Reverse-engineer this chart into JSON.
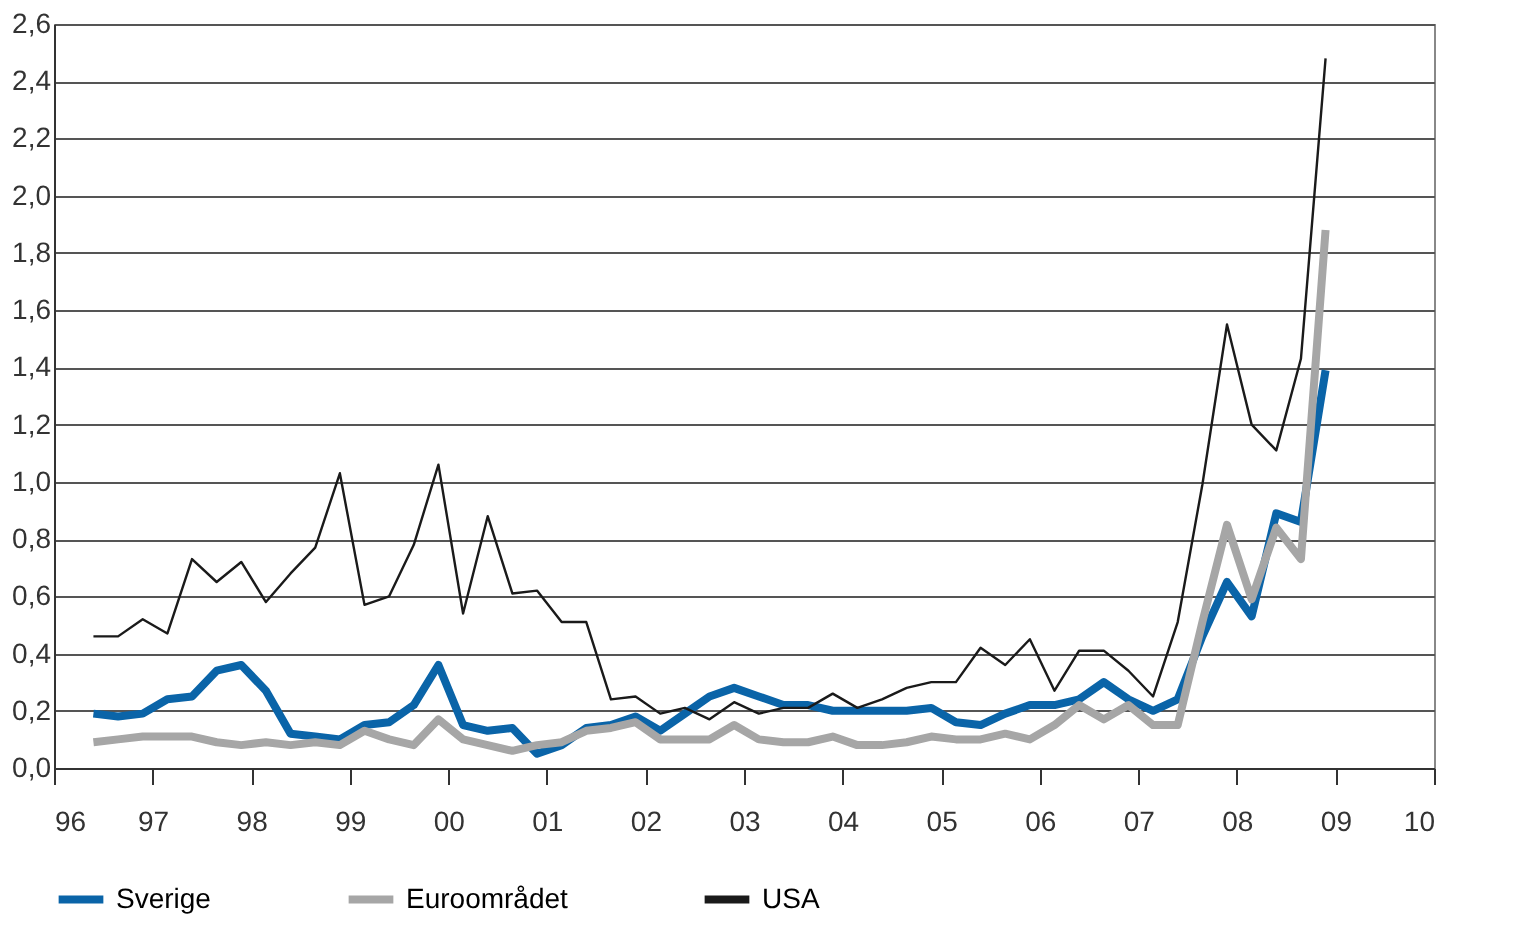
{
  "chart_data": {
    "type": "line",
    "x": [
      1996.4,
      1996.65,
      1996.9,
      1997.15,
      1997.4,
      1997.65,
      1997.9,
      1998.15,
      1998.4,
      1998.65,
      1998.9,
      1999.15,
      1999.4,
      1999.65,
      1999.9,
      2000.15,
      2000.4,
      2000.65,
      2000.9,
      2001.15,
      2001.4,
      2001.65,
      2001.9,
      2002.15,
      2002.4,
      2002.65,
      2002.9,
      2003.15,
      2003.4,
      2003.65,
      2003.9,
      2004.15,
      2004.4,
      2004.65,
      2004.9,
      2005.15,
      2005.4,
      2005.65,
      2005.9,
      2006.15,
      2006.4,
      2006.65,
      2006.9,
      2007.15,
      2007.4,
      2007.65,
      2007.9,
      2008.15,
      2008.4,
      2008.65,
      2008.9
    ],
    "xlim": [
      1996,
      2010
    ],
    "xticks": [
      {
        "value": 1996,
        "label": "96"
      },
      {
        "value": 1997,
        "label": "97"
      },
      {
        "value": 1998,
        "label": "98"
      },
      {
        "value": 1999,
        "label": "99"
      },
      {
        "value": 2000,
        "label": "00"
      },
      {
        "value": 2001,
        "label": "01"
      },
      {
        "value": 2002,
        "label": "02"
      },
      {
        "value": 2003,
        "label": "03"
      },
      {
        "value": 2004,
        "label": "04"
      },
      {
        "value": 2005,
        "label": "05"
      },
      {
        "value": 2006,
        "label": "06"
      },
      {
        "value": 2007,
        "label": "07"
      },
      {
        "value": 2008,
        "label": "08"
      },
      {
        "value": 2009,
        "label": "09"
      },
      {
        "value": 2010,
        "label": "10"
      }
    ],
    "ylim": [
      0,
      2.6
    ],
    "yticks": [
      {
        "value": 0,
        "label": "0,0"
      },
      {
        "value": 0.2,
        "label": "0,2"
      },
      {
        "value": 0.4,
        "label": "0,4"
      },
      {
        "value": 0.6,
        "label": "0,6"
      },
      {
        "value": 0.8,
        "label": "0,8"
      },
      {
        "value": 1.0,
        "label": "1,0"
      },
      {
        "value": 1.2,
        "label": "1,2"
      },
      {
        "value": 1.4,
        "label": "1,4"
      },
      {
        "value": 1.6,
        "label": "1,6"
      },
      {
        "value": 1.8,
        "label": "1,8"
      },
      {
        "value": 2.0,
        "label": "2,0"
      },
      {
        "value": 2.2,
        "label": "2,2"
      },
      {
        "value": 2.4,
        "label": "2,4"
      },
      {
        "value": 2.6,
        "label": "2,6"
      }
    ],
    "grid": "y",
    "legend": "bottom",
    "marker": "none",
    "line_style": "solid",
    "series": [
      {
        "name": "Sverige",
        "color": "#0a64a8",
        "values": [
          0.19,
          0.18,
          0.19,
          0.24,
          0.25,
          0.34,
          0.36,
          0.27,
          0.12,
          0.11,
          0.1,
          0.15,
          0.16,
          0.22,
          0.36,
          0.15,
          0.13,
          0.14,
          0.05,
          0.08,
          0.14,
          0.15,
          0.18,
          0.13,
          0.19,
          0.25,
          0.28,
          0.25,
          0.22,
          0.22,
          0.2,
          0.2,
          0.2,
          0.2,
          0.21,
          0.16,
          0.15,
          0.19,
          0.22,
          0.22,
          0.24,
          0.3,
          0.24,
          0.2,
          0.24,
          0.46,
          0.65,
          0.53,
          0.89,
          0.86,
          1.39
        ]
      },
      {
        "name": "Euroområdet",
        "color": "#a6a6a6",
        "values": [
          0.09,
          0.1,
          0.11,
          0.11,
          0.11,
          0.09,
          0.08,
          0.09,
          0.08,
          0.09,
          0.08,
          0.13,
          0.1,
          0.08,
          0.17,
          0.1,
          0.08,
          0.06,
          0.08,
          0.09,
          0.13,
          0.14,
          0.16,
          0.1,
          0.1,
          0.1,
          0.15,
          0.1,
          0.09,
          0.09,
          0.11,
          0.08,
          0.08,
          0.09,
          0.11,
          0.1,
          0.1,
          0.12,
          0.1,
          0.15,
          0.22,
          0.17,
          0.22,
          0.15,
          0.15,
          0.51,
          0.85,
          0.59,
          0.84,
          0.73,
          1.88
        ]
      },
      {
        "name": "USA",
        "color": "#1a1a1a",
        "values": [
          0.46,
          0.46,
          0.52,
          0.47,
          0.73,
          0.65,
          0.72,
          0.58,
          0.68,
          0.77,
          1.03,
          0.57,
          0.6,
          0.78,
          1.06,
          0.54,
          0.88,
          0.61,
          0.62,
          0.51,
          0.51,
          0.24,
          0.25,
          0.19,
          0.21,
          0.17,
          0.23,
          0.19,
          0.21,
          0.21,
          0.26,
          0.21,
          0.24,
          0.28,
          0.3,
          0.3,
          0.42,
          0.36,
          0.45,
          0.27,
          0.41,
          0.41,
          0.34,
          0.25,
          0.51,
          0.99,
          1.55,
          1.2,
          1.11,
          1.43,
          2.48
        ]
      }
    ]
  }
}
